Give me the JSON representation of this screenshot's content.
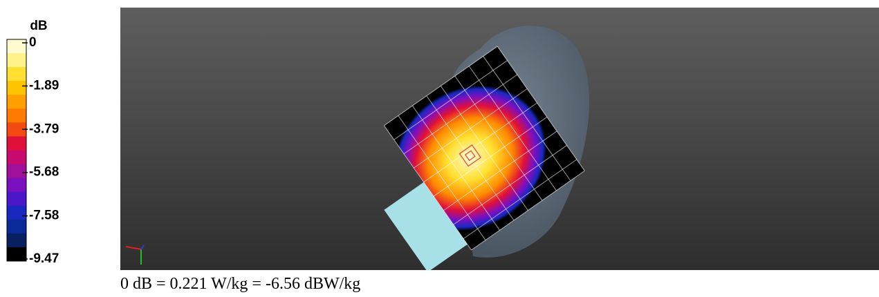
{
  "colorbar": {
    "unit": "dB",
    "ticks": [
      0,
      -1.89,
      -3.79,
      -5.68,
      -7.58,
      -9.47
    ],
    "colors": [
      "#fffbd0",
      "#fff28a",
      "#ffe032",
      "#ffc400",
      "#ffa000",
      "#ff7a00",
      "#f24a10",
      "#e0103a",
      "#c80a6e",
      "#a0109a",
      "#7a10c0",
      "#4a18c8",
      "#1a28c0",
      "#0a2a98",
      "#082060",
      "#000000"
    ]
  },
  "caption": "0 dB = 0.221 W/kg = -6.56 dBW/kg"
}
